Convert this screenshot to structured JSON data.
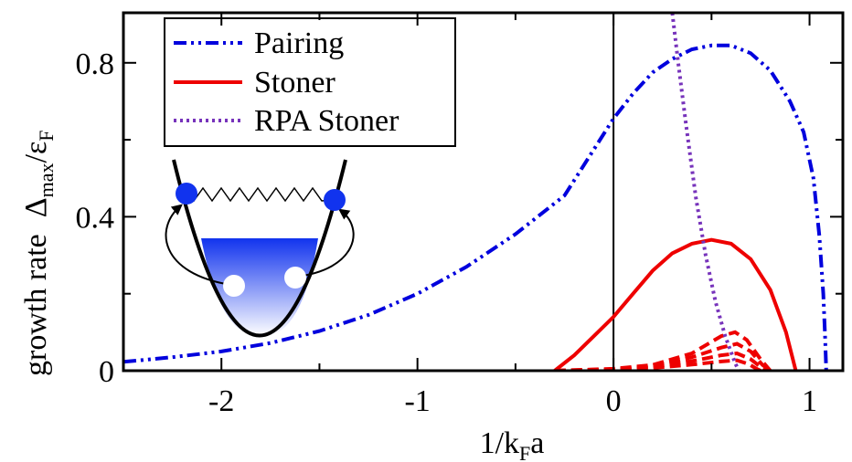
{
  "chart_data": {
    "type": "line",
    "title": "",
    "xlabel": "1/k_Fa",
    "xlabel_parts": {
      "pre": "1/k",
      "sub": "F",
      "post": "a"
    },
    "ylabel_parts": {
      "a": "growth rate",
      "b": "Δ",
      "b_sub": "max",
      "c": "/ε",
      "c_sub": "F"
    },
    "xlim": [
      -2.5,
      1.17
    ],
    "ylim": [
      0,
      0.93
    ],
    "x_ticks": [
      -2,
      -1,
      0,
      1
    ],
    "x_tick_labels": [
      "-2",
      "-1",
      "0",
      "1"
    ],
    "y_ticks": [
      0,
      0.4,
      0.8
    ],
    "y_tick_labels": [
      "0",
      "0.4",
      "0.8"
    ],
    "legend_position": "top-left",
    "vertical_line_x": 0,
    "series": [
      {
        "name": "Pairing",
        "color": "#0000dd",
        "style": "dash-dot",
        "points": [
          [
            -2.5,
            0.023
          ],
          [
            -2.25,
            0.035
          ],
          [
            -2.0,
            0.05
          ],
          [
            -1.75,
            0.072
          ],
          [
            -1.5,
            0.103
          ],
          [
            -1.25,
            0.145
          ],
          [
            -1.0,
            0.2
          ],
          [
            -0.75,
            0.27
          ],
          [
            -0.5,
            0.355
          ],
          [
            -0.25,
            0.455
          ],
          [
            0.0,
            0.655
          ],
          [
            0.1,
            0.72
          ],
          [
            0.2,
            0.775
          ],
          [
            0.3,
            0.81
          ],
          [
            0.4,
            0.835
          ],
          [
            0.5,
            0.845
          ],
          [
            0.6,
            0.845
          ],
          [
            0.7,
            0.825
          ],
          [
            0.8,
            0.78
          ],
          [
            0.9,
            0.7
          ],
          [
            0.97,
            0.62
          ],
          [
            1.02,
            0.5
          ],
          [
            1.05,
            0.35
          ],
          [
            1.07,
            0.2
          ],
          [
            1.08,
            0.08
          ],
          [
            1.085,
            0.0
          ]
        ]
      },
      {
        "name": "Stoner",
        "color": "#ee0000",
        "style": "solid",
        "points": [
          [
            -0.3,
            0.0
          ],
          [
            -0.2,
            0.04
          ],
          [
            -0.1,
            0.09
          ],
          [
            0.0,
            0.14
          ],
          [
            0.1,
            0.2
          ],
          [
            0.2,
            0.26
          ],
          [
            0.3,
            0.305
          ],
          [
            0.4,
            0.33
          ],
          [
            0.5,
            0.34
          ],
          [
            0.6,
            0.33
          ],
          [
            0.7,
            0.29
          ],
          [
            0.8,
            0.21
          ],
          [
            0.88,
            0.1
          ],
          [
            0.93,
            0.0
          ]
        ]
      },
      {
        "name": "RPA Stoner",
        "color": "#7733bb",
        "style": "dotted",
        "points": [
          [
            0.3,
            0.93
          ],
          [
            0.33,
            0.8
          ],
          [
            0.37,
            0.64
          ],
          [
            0.42,
            0.45
          ],
          [
            0.47,
            0.3
          ],
          [
            0.52,
            0.18
          ],
          [
            0.57,
            0.09
          ],
          [
            0.62,
            0.02
          ],
          [
            0.64,
            0.0
          ]
        ]
      }
    ],
    "extra_dashed_curves": [
      {
        "color": "#ee0000",
        "points": [
          [
            -0.3,
            0.0
          ],
          [
            0.0,
            0.005
          ],
          [
            0.2,
            0.015
          ],
          [
            0.4,
            0.045
          ],
          [
            0.55,
            0.09
          ],
          [
            0.62,
            0.1
          ],
          [
            0.68,
            0.08
          ],
          [
            0.75,
            0.03
          ],
          [
            0.8,
            0.0
          ]
        ]
      },
      {
        "color": "#ee0000",
        "points": [
          [
            -0.3,
            0.0
          ],
          [
            0.0,
            0.004
          ],
          [
            0.2,
            0.012
          ],
          [
            0.4,
            0.035
          ],
          [
            0.55,
            0.06
          ],
          [
            0.63,
            0.07
          ],
          [
            0.7,
            0.05
          ],
          [
            0.76,
            0.015
          ],
          [
            0.8,
            0.0
          ]
        ]
      },
      {
        "color": "#ee0000",
        "points": [
          [
            -0.3,
            0.0
          ],
          [
            0.0,
            0.003
          ],
          [
            0.2,
            0.01
          ],
          [
            0.4,
            0.025
          ],
          [
            0.55,
            0.04
          ],
          [
            0.63,
            0.045
          ],
          [
            0.7,
            0.03
          ],
          [
            0.75,
            0.01
          ],
          [
            0.78,
            0.0
          ]
        ]
      },
      {
        "color": "#ee0000",
        "points": [
          [
            -0.3,
            0.0
          ],
          [
            0.0,
            0.002
          ],
          [
            0.2,
            0.007
          ],
          [
            0.4,
            0.016
          ],
          [
            0.55,
            0.024
          ],
          [
            0.63,
            0.027
          ],
          [
            0.69,
            0.017
          ],
          [
            0.73,
            0.005
          ],
          [
            0.75,
            0.0
          ]
        ]
      }
    ]
  }
}
